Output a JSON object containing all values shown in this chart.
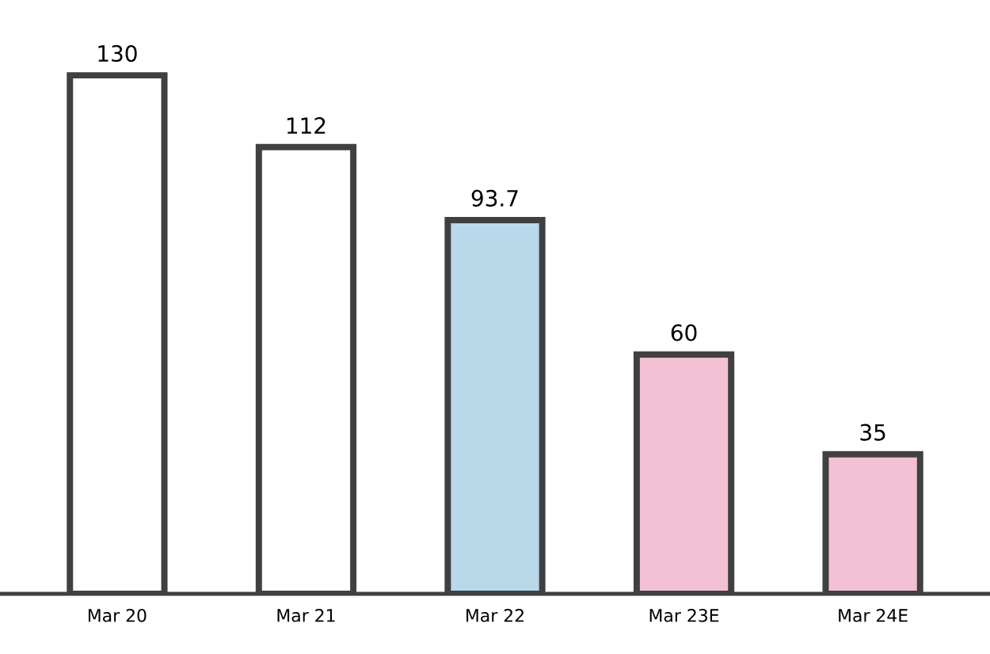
{
  "chart_data": {
    "type": "bar",
    "categories": [
      "Mar 20",
      "Mar 21",
      "Mar 22",
      "Mar 23E",
      "Mar 24E"
    ],
    "values": [
      130,
      112,
      93.7,
      60,
      35
    ],
    "colors": [
      "#ffffff",
      "#ffffff",
      "#b9d8ea",
      "#f2c2d4",
      "#f2c2d4"
    ],
    "data_labels": true
  }
}
